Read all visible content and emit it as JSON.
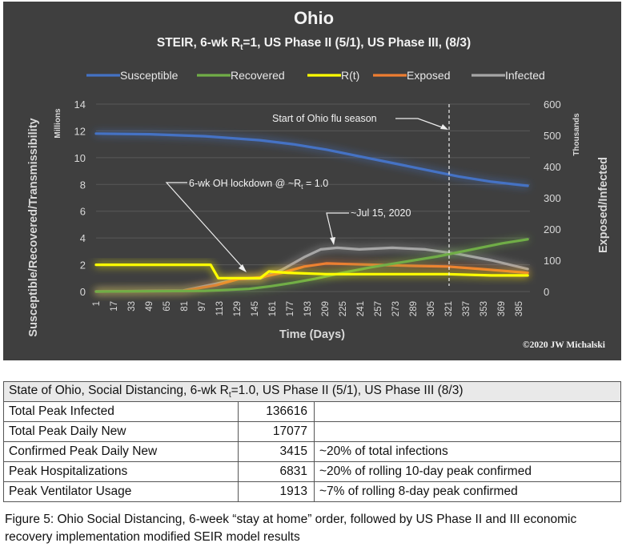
{
  "chart_data": {
    "type": "line",
    "title": "Ohio",
    "subtitle": {
      "pre": "STEIR, 6-wk R",
      "sub": "t",
      "post": "=1, US Phase II (5/1), US Phase III, (8/3)"
    },
    "xlabel": "Time (Days)",
    "ylabel_left": "Susceptible/Recovered/Transmissibility",
    "ylabel_left_units": "Millions",
    "ylabel_right": "Exposed/Infected",
    "ylabel_right_units": "Thousands",
    "ylim_left": [
      0,
      14
    ],
    "ylim_right": [
      0,
      600
    ],
    "xlim": [
      1,
      395
    ],
    "left_ticks": [
      "0",
      "2",
      "4",
      "6",
      "8",
      "10",
      "12",
      "14"
    ],
    "right_ticks": [
      "0",
      "100",
      "200",
      "300",
      "400",
      "500",
      "600"
    ],
    "x_ticks": [
      "1",
      "17",
      "33",
      "49",
      "65",
      "81",
      "97",
      "113",
      "129",
      "145",
      "161",
      "177",
      "193",
      "209",
      "225",
      "241",
      "257",
      "273",
      "289",
      "305",
      "321",
      "337",
      "353",
      "369",
      "385"
    ],
    "legend_position": "top",
    "grid": true,
    "series": [
      {
        "name": "Susceptible",
        "axis": "left",
        "color": "#4472c4",
        "x": [
          1,
          50,
          100,
          150,
          180,
          210,
          240,
          270,
          300,
          330,
          360,
          393
        ],
        "y": [
          11.8,
          11.75,
          11.6,
          11.3,
          11.0,
          10.6,
          10.1,
          9.6,
          9.1,
          8.6,
          8.2,
          7.9
        ]
      },
      {
        "name": "Recovered",
        "axis": "left",
        "color": "#70ad47",
        "x": [
          1,
          100,
          140,
          160,
          180,
          200,
          225,
          250,
          280,
          310,
          340,
          370,
          393
        ],
        "y": [
          0,
          0.05,
          0.2,
          0.4,
          0.65,
          0.95,
          1.4,
          1.8,
          2.2,
          2.6,
          3.1,
          3.6,
          3.9
        ]
      },
      {
        "name": "R(t)",
        "axis": "left",
        "color": "#ffff00",
        "x": [
          1,
          105,
          112,
          150,
          158,
          175,
          210,
          260,
          320,
          360,
          393
        ],
        "y": [
          2.0,
          2.0,
          1.0,
          1.0,
          1.5,
          1.4,
          1.3,
          1.3,
          1.3,
          1.2,
          1.2
        ]
      },
      {
        "name": "Exposed",
        "axis": "right",
        "color": "#ed7d31",
        "x": [
          1,
          80,
          110,
          130,
          150,
          170,
          190,
          210,
          230,
          260,
          290,
          320,
          350,
          393
        ],
        "y": [
          0,
          2,
          20,
          40,
          45,
          60,
          80,
          90,
          88,
          85,
          82,
          80,
          72,
          60
        ]
      },
      {
        "name": "Infected",
        "axis": "right",
        "color": "#a6a6a6",
        "x": [
          1,
          80,
          110,
          130,
          150,
          170,
          190,
          205,
          220,
          240,
          270,
          300,
          330,
          360,
          393
        ],
        "y": [
          0,
          3,
          25,
          40,
          42,
          70,
          110,
          135,
          140,
          135,
          140,
          135,
          120,
          100,
          72
        ]
      }
    ],
    "annotations": [
      {
        "text": "Start of Ohio flu season",
        "day": 320
      },
      {
        "pre": "6-wk OH lockdown @ ~R",
        "sub": "t",
        "post": " = 1.0"
      },
      {
        "text": "~Jul 15, 2020"
      }
    ],
    "copyright": "©2020 JW Michalski"
  },
  "table": {
    "header": {
      "pre": "State of Ohio, Social Distancing, 6-wk R",
      "sub": "t",
      "post": "=1.0, US Phase II (5/1), US Phase III (8/3)"
    },
    "rows": [
      {
        "label": "Total Peak Infected",
        "value": "136616",
        "note": ""
      },
      {
        "label": "Total Peak Daily New",
        "value": "17077",
        "note": ""
      },
      {
        "label": "Confirmed Peak Daily New",
        "value": "3415",
        "note": "~20% of total infections"
      },
      {
        "label": "Peak Hospitalizations",
        "value": "6831",
        "note": "~20% of rolling 10-day peak confirmed"
      },
      {
        "label": "Peak Ventilator Usage",
        "value": "1913",
        "note": "~7% of rolling 8-day peak confirmed"
      }
    ]
  },
  "caption": "Figure 5: Ohio Social Distancing, 6-week “stay at home” order, followed by US Phase II and III economic recovery implementation modified SEIR model results"
}
